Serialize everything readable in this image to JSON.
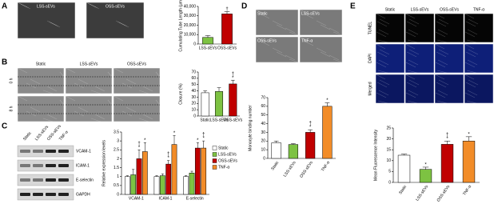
{
  "figure": {
    "letters": [
      "A",
      "B",
      "C",
      "D",
      "E"
    ],
    "a_images": [
      "LSS-sEVs",
      "OSS-sEVs"
    ],
    "b_columns": [
      "Static",
      "LSS-sEVs",
      "OSS-sEVs"
    ],
    "b_rows": [
      "0 h",
      "8 h"
    ],
    "c_lanes": [
      "Static",
      "LSS-sEVs",
      "OSS-sEVs",
      "TNF-α"
    ],
    "c_bands": [
      "VCAM-1",
      "ICAM-1",
      "E-selectin",
      "GAPDH"
    ],
    "d_images": [
      "Static",
      "LSS-sEVs",
      "OSS-sEVs",
      "TNF-α"
    ],
    "e_columns": [
      "Static",
      "LSS-sEVs",
      "OSS-sEVs",
      "TNF-α"
    ],
    "e_rows": [
      "TUNEL",
      "DAPI",
      "Merged"
    ]
  },
  "chart_data": [
    {
      "type": "bar",
      "ylabel": "Cumulating Tube Length (µm)",
      "categories": [
        "LSS-sEVs",
        "OSS-sEVs"
      ],
      "values": [
        7000,
        32000
      ],
      "errors": [
        2000,
        2500
      ],
      "colors": [
        "#7dc242",
        "#c00000"
      ],
      "sig": [
        null,
        [
          "†"
        ]
      ],
      "ylim": [
        0,
        40000
      ],
      "yticks": [
        0,
        {
          "value": 10000,
          "label": "10,000"
        },
        {
          "value": 20000,
          "label": "20,000"
        },
        {
          "value": 30000,
          "label": "30,000"
        },
        {
          "value": 40000,
          "label": "40,000"
        }
      ]
    },
    {
      "type": "bar",
      "ylabel": "Closure (%)",
      "categories": [
        "Static",
        "LSS-sEVs",
        "OSS-sEVs"
      ],
      "values": [
        37,
        39,
        51
      ],
      "errors": [
        3,
        6,
        6
      ],
      "colors": [
        "#ffffff",
        "#7dc242",
        "#c00000"
      ],
      "sig": [
        null,
        null,
        [
          "†",
          "*"
        ]
      ],
      "ylim": [
        0,
        70
      ],
      "yticks": [
        0,
        10,
        20,
        30,
        40,
        50,
        60,
        70
      ]
    },
    {
      "type": "grouped-bar",
      "ylabel": "Relative expression levels",
      "categories": [
        "VCAM-1",
        "ICAM-1",
        "E-selectin"
      ],
      "series": [
        {
          "name": "Static",
          "color": "#ffffff",
          "values": [
            1,
            1,
            1
          ],
          "errors": [
            0.05,
            0.05,
            0.05
          ],
          "sig": [
            null,
            null,
            null
          ]
        },
        {
          "name": "LSS-sEVs",
          "color": "#7dc242",
          "values": [
            1.1,
            1.05,
            1.2
          ],
          "errors": [
            0.3,
            0.1,
            0.1
          ],
          "sig": [
            null,
            null,
            null
          ]
        },
        {
          "name": "OSS-sEVs",
          "color": "#c00000",
          "values": [
            2,
            1.7,
            2.6
          ],
          "errors": [
            0.5,
            0.2,
            0.3
          ],
          "sig": [
            [
              "†",
              "*"
            ],
            [
              "†",
              "*"
            ],
            [
              "*"
            ]
          ]
        },
        {
          "name": "TNF-α",
          "color": "#f28c28",
          "values": [
            2.4,
            2.8,
            2.6
          ],
          "errors": [
            0.5,
            0.5,
            0.4
          ],
          "sig": [
            [
              "*"
            ],
            [
              "*"
            ],
            [
              "†",
              "*"
            ]
          ]
        }
      ],
      "ylim": [
        0,
        3.5
      ],
      "yticks": [
        0,
        0.5,
        1,
        1.5,
        2,
        2.5,
        3,
        3.5
      ]
    },
    {
      "type": "bar",
      "ylabel": "Monocyte binding number",
      "categories": [
        "Static",
        "LSS-sEVs",
        "OSS-sEVs",
        "TNF-α"
      ],
      "values": [
        18,
        16,
        30,
        60
      ],
      "errors": [
        2,
        1,
        3,
        4
      ],
      "colors": [
        "#ffffff",
        "#7dc242",
        "#c00000",
        "#f28c28"
      ],
      "sig": [
        null,
        null,
        [
          "†",
          "*"
        ],
        [
          "*"
        ]
      ],
      "ylim": [
        0,
        70
      ],
      "yticks": [
        0,
        10,
        20,
        30,
        40,
        50,
        60,
        70
      ]
    },
    {
      "type": "bar",
      "ylabel": "Mean Fluorescence Intensity",
      "categories": [
        "Static",
        "LSS-sEVs",
        "OSS-sEVs",
        "TNF-α"
      ],
      "values": [
        12.5,
        6,
        17.5,
        19
      ],
      "errors": [
        0.5,
        1,
        1.5,
        2
      ],
      "colors": [
        "#ffffff",
        "#7dc242",
        "#c00000",
        "#f28c28"
      ],
      "sig": [
        null,
        [
          "*"
        ],
        [
          "†",
          "*"
        ],
        [
          "*"
        ]
      ],
      "ylim": [
        0,
        25
      ],
      "yticks": [
        0,
        5,
        10,
        15,
        20,
        25
      ]
    }
  ]
}
